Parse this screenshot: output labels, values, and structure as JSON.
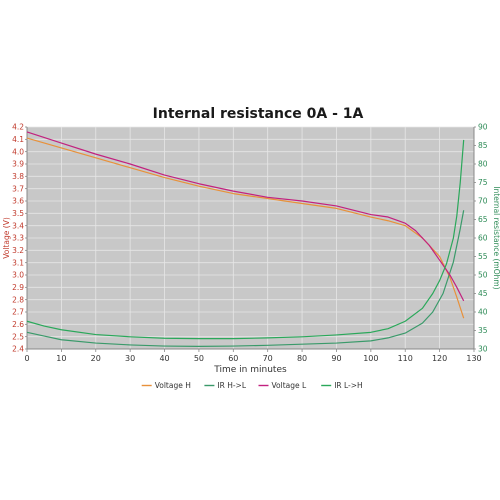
{
  "chart_data": {
    "type": "line",
    "title": "Internal resistance  0A - 1A",
    "xlabel": "Time in minutes",
    "ylabel_left": "Voltage (V)",
    "ylabel_right": "Internal resistance (mOhm)",
    "xlim": [
      0,
      130
    ],
    "ylim_left": [
      2.4,
      4.2
    ],
    "ylim_right": [
      30,
      90
    ],
    "x_ticks": [
      0,
      10,
      20,
      30,
      40,
      50,
      60,
      70,
      80,
      90,
      100,
      110,
      120,
      130
    ],
    "y_left_ticks": [
      2.4,
      2.5,
      2.6,
      2.7,
      2.8,
      2.9,
      3.0,
      3.1,
      3.2,
      3.3,
      3.4,
      3.5,
      3.6,
      3.7,
      3.8,
      3.9,
      4.0,
      4.1,
      4.2
    ],
    "y_right_ticks": [
      30,
      35,
      40,
      45,
      50,
      55,
      60,
      65,
      70,
      75,
      80,
      85,
      90
    ],
    "grid": true,
    "legend_position": "bottom",
    "colors": {
      "plot_background": "#c8c8c8",
      "grid": "#e6e6e6",
      "voltage_h": "#e8913a",
      "ir_h_l": "#3a9a6a",
      "voltage_l": "#c2217f",
      "ir_l_h": "#2aa85a",
      "left_axis": "#c0392b",
      "right_axis": "#2e8b57"
    },
    "series": [
      {
        "name": "Voltage H",
        "axis": "left",
        "color_key": "voltage_h",
        "x": [
          0,
          10,
          20,
          30,
          40,
          50,
          60,
          70,
          80,
          90,
          100,
          105,
          110,
          115,
          120,
          123,
          125,
          127
        ],
        "y": [
          4.11,
          4.03,
          3.95,
          3.87,
          3.79,
          3.72,
          3.66,
          3.62,
          3.58,
          3.54,
          3.47,
          3.44,
          3.4,
          3.3,
          3.15,
          2.98,
          2.82,
          2.65
        ]
      },
      {
        "name": "IR H->L",
        "axis": "right",
        "color_key": "ir_h_l",
        "x": [
          0,
          5,
          10,
          20,
          30,
          40,
          50,
          60,
          70,
          80,
          90,
          100,
          105,
          110,
          115,
          118,
          121,
          124,
          126,
          127
        ],
        "y": [
          34.5,
          33.5,
          32.5,
          31.6,
          31.1,
          30.8,
          30.7,
          30.8,
          31.0,
          31.3,
          31.6,
          32.2,
          33.0,
          34.3,
          37.0,
          40.0,
          45.0,
          53.5,
          62.5,
          67.5
        ]
      },
      {
        "name": "Voltage L",
        "axis": "left",
        "color_key": "voltage_l",
        "x": [
          0,
          10,
          20,
          30,
          40,
          50,
          60,
          70,
          80,
          90,
          100,
          105,
          110,
          113,
          117,
          120,
          123,
          125,
          127
        ],
        "y": [
          4.16,
          4.07,
          3.98,
          3.9,
          3.81,
          3.74,
          3.68,
          3.63,
          3.6,
          3.56,
          3.49,
          3.47,
          3.42,
          3.36,
          3.24,
          3.12,
          3.0,
          2.9,
          2.79
        ]
      },
      {
        "name": "IR L->H",
        "axis": "right",
        "color_key": "ir_l_h",
        "x": [
          0,
          5,
          10,
          20,
          30,
          40,
          50,
          60,
          70,
          80,
          90,
          100,
          105,
          110,
          115,
          118,
          120,
          122,
          124,
          125,
          126,
          127
        ],
        "y": [
          37.5,
          36.2,
          35.2,
          33.9,
          33.3,
          32.9,
          32.8,
          32.8,
          33.0,
          33.3,
          33.8,
          34.5,
          35.5,
          37.5,
          41.0,
          45.0,
          48.5,
          53.0,
          60.0,
          66.0,
          75.0,
          86.5
        ]
      }
    ]
  }
}
